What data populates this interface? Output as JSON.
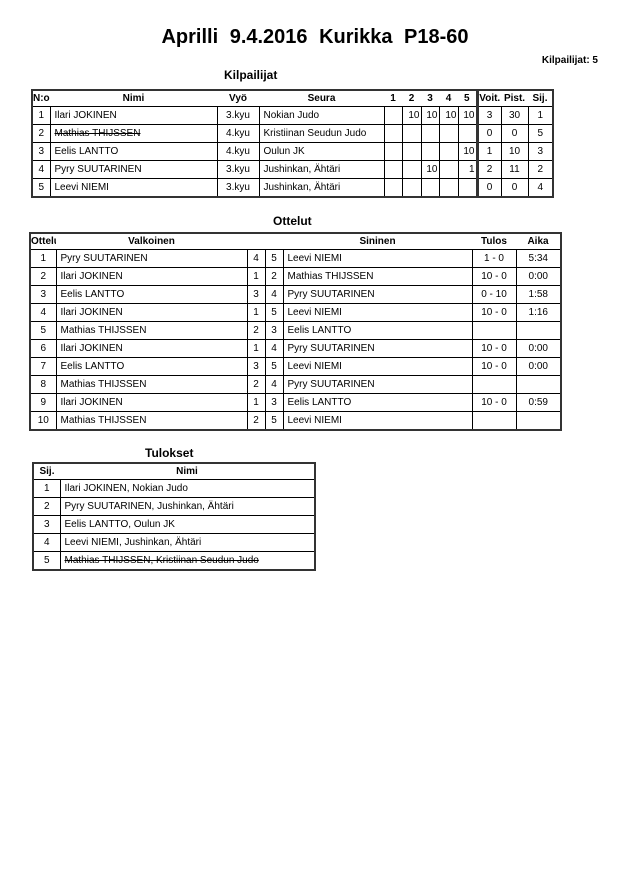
{
  "title": "Aprilli  9.4.2016  Kurikka    P18-60",
  "competitor_count": "Kilpailijat: 5",
  "competitors": {
    "heading": "Kilpailijat",
    "columns": [
      "N:o",
      "Nimi",
      "Vyö",
      "Seura",
      "1",
      "2",
      "3",
      "4",
      "5",
      "Voit.",
      "Pist.",
      "Sij."
    ],
    "rows": [
      {
        "no": "1",
        "name": "Ilari JOKINEN",
        "belt": "3.kyu",
        "club": "Nokian Judo",
        "r": [
          "",
          "10",
          "10",
          "10",
          "10"
        ],
        "wins": "3",
        "points": "30",
        "rank": "1",
        "withdrawn": false
      },
      {
        "no": "2",
        "name": "Mathias THIJSSEN",
        "belt": "4.kyu",
        "club": "Kristiinan Seudun Judo",
        "r": [
          "",
          "",
          "",
          "",
          ""
        ],
        "wins": "0",
        "points": "0",
        "rank": "5",
        "withdrawn": true
      },
      {
        "no": "3",
        "name": "Eelis LANTTO",
        "belt": "4.kyu",
        "club": "Oulun JK",
        "r": [
          "",
          "",
          "",
          "",
          "10"
        ],
        "wins": "1",
        "points": "10",
        "rank": "3",
        "withdrawn": false
      },
      {
        "no": "4",
        "name": "Pyry SUUTARINEN",
        "belt": "3.kyu",
        "club": "Jushinkan, Ähtäri",
        "r": [
          "",
          "",
          "10",
          "",
          "1"
        ],
        "wins": "2",
        "points": "11",
        "rank": "2",
        "withdrawn": false
      },
      {
        "no": "5",
        "name": "Leevi NIEMI",
        "belt": "3.kyu",
        "club": "Jushinkan, Ähtäri",
        "r": [
          "",
          "",
          "",
          "",
          ""
        ],
        "wins": "0",
        "points": "0",
        "rank": "4",
        "withdrawn": false
      }
    ]
  },
  "matches": {
    "heading": "Ottelut",
    "columns": [
      "Ottelu",
      "Valkoinen",
      "Sininen",
      "Tulos",
      "Aika"
    ],
    "rows": [
      {
        "n": "1",
        "white": "Pyry SUUTARINEN",
        "wn": "4",
        "bn": "5",
        "blue": "Leevi NIEMI",
        "result": "1 - 0",
        "time": "5:34"
      },
      {
        "n": "2",
        "white": "Ilari JOKINEN",
        "wn": "1",
        "bn": "2",
        "blue": "Mathias THIJSSEN",
        "result": "10 - 0",
        "time": "0:00"
      },
      {
        "n": "3",
        "white": "Eelis LANTTO",
        "wn": "3",
        "bn": "4",
        "blue": "Pyry SUUTARINEN",
        "result": "0 - 10",
        "time": "1:58"
      },
      {
        "n": "4",
        "white": "Ilari JOKINEN",
        "wn": "1",
        "bn": "5",
        "blue": "Leevi NIEMI",
        "result": "10 - 0",
        "time": "1:16"
      },
      {
        "n": "5",
        "white": "Mathias THIJSSEN",
        "wn": "2",
        "bn": "3",
        "blue": "Eelis LANTTO",
        "result": "",
        "time": ""
      },
      {
        "n": "6",
        "white": "Ilari JOKINEN",
        "wn": "1",
        "bn": "4",
        "blue": "Pyry SUUTARINEN",
        "result": "10 - 0",
        "time": "0:00"
      },
      {
        "n": "7",
        "white": "Eelis LANTTO",
        "wn": "3",
        "bn": "5",
        "blue": "Leevi NIEMI",
        "result": "10 - 0",
        "time": "0:00"
      },
      {
        "n": "8",
        "white": "Mathias THIJSSEN",
        "wn": "2",
        "bn": "4",
        "blue": "Pyry SUUTARINEN",
        "result": "",
        "time": ""
      },
      {
        "n": "9",
        "white": "Ilari JOKINEN",
        "wn": "1",
        "bn": "3",
        "blue": "Eelis LANTTO",
        "result": "10 - 0",
        "time": "0:59"
      },
      {
        "n": "10",
        "white": "Mathias THIJSSEN",
        "wn": "2",
        "bn": "5",
        "blue": "Leevi NIEMI",
        "result": "",
        "time": ""
      }
    ]
  },
  "results": {
    "heading": "Tulokset",
    "columns": [
      "Sij.",
      "Nimi"
    ],
    "rows": [
      {
        "rank": "1",
        "name": "Ilari JOKINEN, Nokian Judo",
        "withdrawn": false
      },
      {
        "rank": "2",
        "name": "Pyry SUUTARINEN, Jushinkan, Ähtäri",
        "withdrawn": false
      },
      {
        "rank": "3",
        "name": "Eelis LANTTO, Oulun JK",
        "withdrawn": false
      },
      {
        "rank": "4",
        "name": "Leevi NIEMI, Jushinkan, Ähtäri",
        "withdrawn": false
      },
      {
        "rank": "5",
        "name": "Mathias THIJSSEN, Kristiinan Seudun Judo",
        "withdrawn": true
      }
    ]
  }
}
